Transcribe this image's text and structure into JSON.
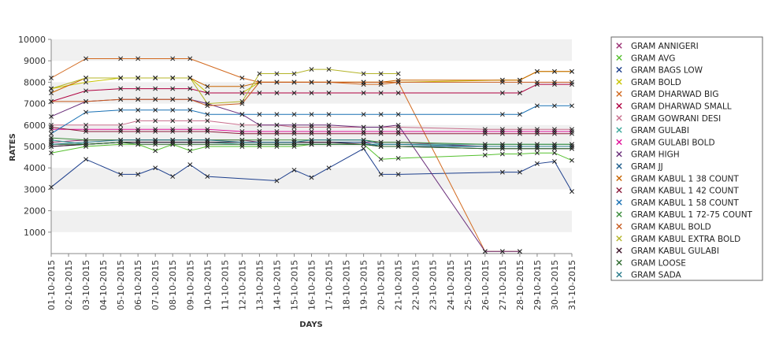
{
  "chart_data": {
    "type": "line",
    "title": "",
    "xlabel": "DAYS",
    "ylabel": "RATES",
    "ylim": [
      0,
      10000
    ],
    "yticks": [
      1000,
      2000,
      3000,
      4000,
      5000,
      6000,
      7000,
      8000,
      9000,
      10000
    ],
    "grid": "alternating horizontal bands",
    "legend_position": "right",
    "categories": [
      "01-10-2015",
      "02-10-2015",
      "03-10-2015",
      "04-10-2015",
      "05-10-2015",
      "06-10-2015",
      "07-10-2015",
      "08-10-2015",
      "09-10-2015",
      "10-10-2015",
      "11-10-2015",
      "12-10-2015",
      "13-10-2015",
      "14-10-2015",
      "15-10-2015",
      "16-10-2015",
      "17-10-2015",
      "18-10-2015",
      "19-10-2015",
      "20-10-2015",
      "21-10-2015",
      "22-10-2015",
      "23-10-2015",
      "24-10-2015",
      "25-10-2015",
      "26-10-2015",
      "27-10-2015",
      "28-10-2015",
      "29-10-2015",
      "30-10-2015",
      "31-10-2015"
    ],
    "series": [
      {
        "name": "GRAM ANNIGERI",
        "color": "#9a2e72",
        "values": [
          5200,
          null,
          5300,
          null,
          5300,
          5300,
          5300,
          5300,
          5300,
          5300,
          null,
          5300,
          5200,
          5200,
          5200,
          5200,
          5200,
          null,
          5200,
          5200,
          5200,
          null,
          null,
          null,
          null,
          5000,
          5000,
          5000,
          5000,
          5000,
          5000
        ]
      },
      {
        "name": "GRAM AVG",
        "color": "#55c02e",
        "values": [
          4700,
          null,
          5000,
          null,
          5100,
          5100,
          4800,
          5100,
          4800,
          5000,
          null,
          5000,
          5000,
          5000,
          5000,
          5100,
          5100,
          null,
          5100,
          4400,
          4450,
          null,
          null,
          null,
          null,
          4600,
          4650,
          4650,
          4700,
          4700,
          4350
        ]
      },
      {
        "name": "GRAM BAGS LOW",
        "color": "#1c3e8c",
        "values": [
          3100,
          null,
          4400,
          null,
          3700,
          3700,
          4000,
          3600,
          4150,
          3600,
          null,
          null,
          null,
          3400,
          3900,
          3550,
          4000,
          null,
          4900,
          3700,
          3700,
          null,
          null,
          null,
          null,
          null,
          3800,
          3800,
          4200,
          4300,
          2900
        ]
      },
      {
        "name": "GRAM BOLD",
        "color": "#c8c400",
        "values": [
          7700,
          null,
          8000,
          null,
          8200,
          8200,
          8200,
          8200,
          8200,
          7500,
          null,
          7500,
          8000,
          8000,
          8000,
          8000,
          8000,
          null,
          8000,
          8000,
          8000,
          null,
          null,
          null,
          null,
          null,
          8100,
          8100,
          8500,
          8500,
          8500
        ]
      },
      {
        "name": "GRAM DHARWAD BIG",
        "color": "#d2691e",
        "values": [
          8200,
          null,
          9100,
          null,
          9100,
          9100,
          null,
          9100,
          9100,
          null,
          null,
          8200,
          8000,
          8000,
          8000,
          8000,
          8000,
          null,
          7900,
          7900,
          8000,
          null,
          null,
          null,
          null,
          100,
          100,
          100,
          null,
          null,
          null
        ]
      },
      {
        "name": "GRAM DHARWAD SMALL",
        "color": "#b00040",
        "values": [
          7100,
          null,
          7600,
          null,
          7700,
          7700,
          7700,
          7700,
          7700,
          7500,
          null,
          7500,
          7500,
          7500,
          7500,
          7500,
          7500,
          null,
          7500,
          7500,
          7500,
          null,
          null,
          null,
          null,
          null,
          7500,
          7500,
          7900,
          7900,
          7900
        ]
      },
      {
        "name": "GRAM GOWRANI DESI",
        "color": "#c86e8c",
        "values": [
          6000,
          null,
          6000,
          null,
          6000,
          6200,
          6200,
          6200,
          6200,
          6200,
          null,
          6000,
          6000,
          6000,
          5900,
          5900,
          5900,
          null,
          5900,
          5900,
          5900,
          null,
          null,
          null,
          null,
          5800,
          5800,
          5800,
          5800,
          5800,
          5800
        ]
      },
      {
        "name": "GRAM GULABI",
        "color": "#3aa89a",
        "values": [
          5300,
          null,
          5100,
          null,
          5200,
          5200,
          5200,
          5200,
          5200,
          5200,
          null,
          5100,
          5100,
          5100,
          5100,
          5100,
          5100,
          null,
          5100,
          5100,
          5100,
          null,
          null,
          null,
          null,
          5100,
          5100,
          5100,
          5100,
          5100,
          5100
        ]
      },
      {
        "name": "GRAM GULABI BOLD",
        "color": "#e0109a",
        "values": [
          5800,
          null,
          5800,
          null,
          5800,
          5800,
          5800,
          5800,
          5800,
          5800,
          null,
          5700,
          5700,
          5700,
          5700,
          5700,
          5700,
          null,
          5700,
          5700,
          5700,
          null,
          null,
          null,
          null,
          5700,
          5700,
          5700,
          5700,
          5700,
          5700
        ]
      },
      {
        "name": "GRAM HIGH",
        "color": "#6a2e7a",
        "values": [
          6400,
          null,
          7100,
          null,
          7200,
          7200,
          7200,
          7200,
          7200,
          7000,
          null,
          6500,
          6000,
          6000,
          6000,
          6000,
          6000,
          null,
          5900,
          5900,
          6000,
          null,
          null,
          null,
          null,
          100,
          100,
          100,
          null,
          null,
          null
        ]
      },
      {
        "name": "GRAM JJ",
        "color": "#1a5c8c",
        "values": [
          5000,
          null,
          5100,
          null,
          5200,
          5200,
          5200,
          5200,
          5200,
          5200,
          null,
          5200,
          5200,
          5200,
          5200,
          5200,
          5200,
          null,
          5200,
          5000,
          5000,
          null,
          null,
          null,
          null,
          5000,
          5000,
          5000,
          5000,
          5000,
          5000
        ]
      },
      {
        "name": "GRAM KABUL 1 38 COUNT",
        "color": "#c86400",
        "values": [
          7500,
          null,
          8200,
          null,
          8200,
          8200,
          8200,
          8200,
          8200,
          7800,
          null,
          7800,
          8000,
          8000,
          8000,
          8000,
          8000,
          null,
          8000,
          8000,
          8100,
          null,
          null,
          null,
          null,
          null,
          8100,
          8100,
          8500,
          8500,
          8500
        ]
      },
      {
        "name": "GRAM KABUL 1 42 COUNT",
        "color": "#8c1c3c",
        "values": [
          5900,
          null,
          5700,
          null,
          5700,
          5700,
          5700,
          5700,
          5700,
          5700,
          null,
          5600,
          5600,
          5600,
          5600,
          5600,
          5600,
          null,
          5600,
          5600,
          5600,
          null,
          null,
          null,
          null,
          5600,
          5600,
          5600,
          5600,
          5600,
          5600
        ]
      },
      {
        "name": "GRAM KABUL 1 58 COUNT",
        "color": "#1870b4",
        "values": [
          5600,
          null,
          6600,
          null,
          6700,
          6700,
          6700,
          6700,
          6700,
          6500,
          null,
          6500,
          6500,
          6500,
          6500,
          6500,
          6500,
          null,
          6500,
          6500,
          6500,
          null,
          null,
          null,
          null,
          null,
          6500,
          6500,
          6900,
          6900,
          6900
        ]
      },
      {
        "name": "GRAM KABUL 1 72-75 COUNT",
        "color": "#3a8c3a",
        "values": [
          5400,
          null,
          5300,
          null,
          5300,
          5300,
          5300,
          5300,
          5300,
          5300,
          null,
          5300,
          5300,
          5300,
          5300,
          5300,
          5300,
          null,
          5300,
          5200,
          5200,
          null,
          null,
          null,
          null,
          5100,
          5100,
          5100,
          5100,
          5100,
          5100
        ]
      },
      {
        "name": "GRAM KABUL BOLD",
        "color": "#c85a1e",
        "values": [
          7100,
          null,
          7100,
          null,
          7200,
          7200,
          7200,
          7200,
          7200,
          6900,
          null,
          7000,
          8000,
          8000,
          8000,
          8000,
          8000,
          null,
          8000,
          8000,
          8000,
          null,
          null,
          null,
          null,
          null,
          8000,
          8000,
          8000,
          8000,
          8000
        ]
      },
      {
        "name": "GRAM KABUL EXTRA BOLD",
        "color": "#b4b428",
        "values": [
          7700,
          null,
          8200,
          null,
          8200,
          8200,
          8200,
          8200,
          8200,
          7000,
          null,
          7100,
          8400,
          8400,
          8400,
          8600,
          8600,
          null,
          8400,
          8400,
          8400,
          null,
          null,
          null,
          null,
          null,
          null,
          null,
          null,
          null,
          null
        ]
      },
      {
        "name": "GRAM KABUL GULABI",
        "color": "#3c1428",
        "values": [
          5000,
          null,
          5100,
          null,
          5200,
          5200,
          5200,
          5200,
          5200,
          5200,
          null,
          5200,
          5200,
          5200,
          5200,
          5200,
          5200,
          null,
          5100,
          5000,
          5000,
          null,
          null,
          null,
          null,
          4900,
          4900,
          4900,
          4900,
          4900,
          4900
        ]
      },
      {
        "name": "GRAM LOOSE",
        "color": "#2e6a2e",
        "values": [
          5100,
          null,
          5100,
          null,
          5200,
          5100,
          5100,
          5100,
          5100,
          5100,
          null,
          5100,
          5100,
          5100,
          5100,
          5100,
          5100,
          null,
          5100,
          5000,
          5000,
          null,
          null,
          null,
          null,
          4900,
          4900,
          4900,
          4900,
          4900,
          4900
        ]
      },
      {
        "name": "GRAM SADA",
        "color": "#2a7c8c",
        "values": [
          5100,
          null,
          5200,
          null,
          5300,
          5300,
          5300,
          5300,
          5300,
          5300,
          null,
          5200,
          5200,
          5200,
          5200,
          5300,
          5300,
          null,
          5300,
          5100,
          5100,
          null,
          null,
          null,
          null,
          5000,
          5000,
          5000,
          5000,
          5000,
          5000
        ]
      }
    ]
  }
}
